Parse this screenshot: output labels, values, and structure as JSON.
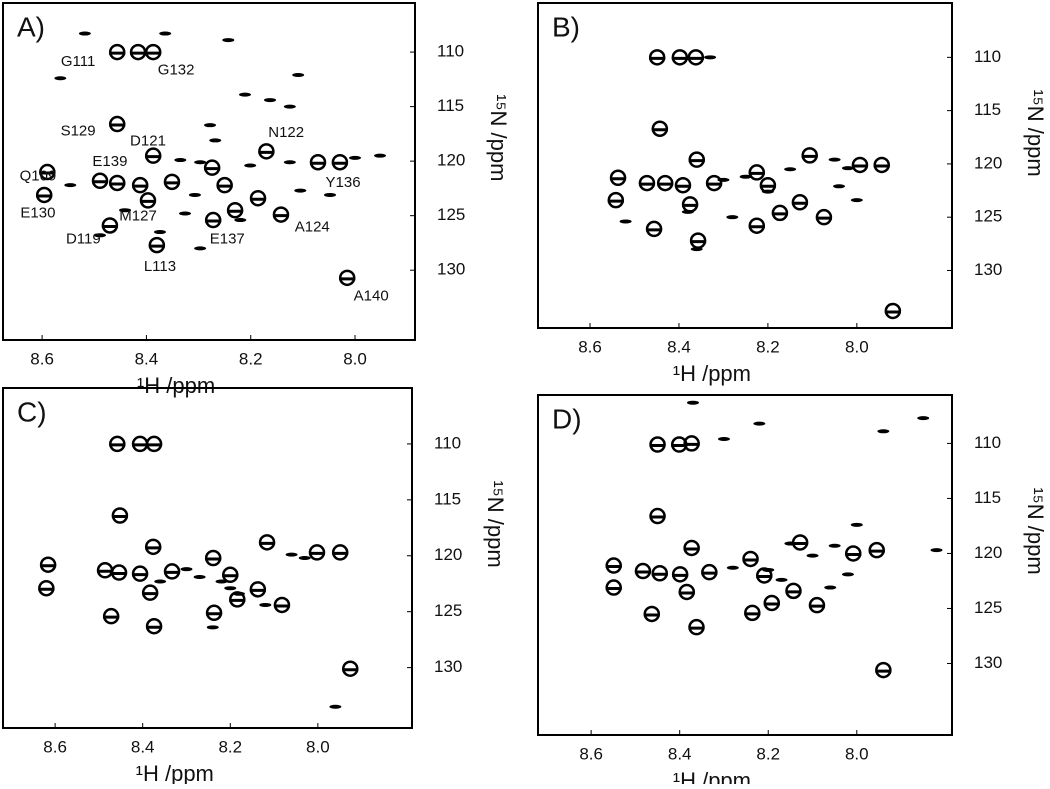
{
  "chart_data": [
    {
      "type": "scatter",
      "panel_label": "A)",
      "xlabel": "¹H /ppm",
      "ylabel": "¹⁵N /ppm",
      "xlim": [
        7.885,
        8.675
      ],
      "x_reversed": true,
      "ylim": [
        105.5,
        136.4
      ],
      "y_reversed": true,
      "xticks": [
        8.6,
        8.4,
        8.2,
        {
          "value": 8,
          "label": "8.0"
        }
      ],
      "yticks": [
        110,
        115,
        120,
        125,
        130
      ],
      "series": [
        {
          "marker": "circle",
          "color": "#000000",
          "x": [
            8.456,
            8.416,
            8.387,
            8.456,
            8.387,
            8.17,
            8.274,
            8.071,
            8.029,
            8.59,
            8.489,
            8.456,
            8.412,
            8.351,
            8.25,
            8.397,
            8.186,
            8.596,
            8.23,
            8.142,
            8.47,
            8.272,
            8.38,
            8.015
          ],
          "values": [
            110,
            110,
            110,
            116.6,
            119.5,
            119.1,
            120.6,
            120.1,
            120.1,
            121,
            121.8,
            122,
            122.2,
            121.9,
            122.2,
            123.6,
            123.4,
            123.1,
            124.5,
            124.9,
            125.9,
            125.4,
            127.7,
            130.7
          ]
        },
        {
          "marker": "peak",
          "color": "#000000",
          "x": [
            8.518,
            8.364,
            8.243,
            8.565,
            8.109,
            8.211,
            8.163,
            8.125,
            8.278,
            8.268,
            8.335,
            8.297,
            8.0,
            7.952,
            8.201,
            8.105,
            8.048,
            8.546,
            8.307,
            8.441,
            8.326,
            8.22,
            8.374,
            8.297,
            8.489,
            8.125
          ],
          "values": [
            108.3,
            108.3,
            108.9,
            112.4,
            112.1,
            113.9,
            114.4,
            115,
            116.7,
            118.1,
            119.9,
            120.1,
            119.7,
            119.5,
            120.4,
            122.7,
            123.1,
            122.2,
            123.1,
            124.5,
            124.8,
            125.4,
            126.5,
            128,
            126.8,
            120.1
          ]
        }
      ],
      "annotations": [
        {
          "text": "G111",
          "x": 8.531,
          "y": 110.9
        },
        {
          "text": "G132",
          "x": 8.343,
          "y": 111.7
        },
        {
          "text": "S129",
          "x": 8.531,
          "y": 117.3
        },
        {
          "text": "D121",
          "x": 8.397,
          "y": 118.2
        },
        {
          "text": "N122",
          "x": 8.132,
          "y": 117.4
        },
        {
          "text": "E139",
          "x": 8.47,
          "y": 120.1
        },
        {
          "text": "Q109",
          "x": 8.608,
          "y": 121.4
        },
        {
          "text": "Y136",
          "x": 8.023,
          "y": 122
        },
        {
          "text": "E130",
          "x": 8.608,
          "y": 124.8
        },
        {
          "text": "M127",
          "x": 8.416,
          "y": 125.1
        },
        {
          "text": "D119",
          "x": 8.521,
          "y": 127.2
        },
        {
          "text": "E137",
          "x": 8.245,
          "y": 127.2
        },
        {
          "text": "A124",
          "x": 8.082,
          "y": 126.1
        },
        {
          "text": "L113",
          "x": 8.374,
          "y": 129.7
        },
        {
          "text": "A140",
          "x": 7.969,
          "y": 132.4
        }
      ]
    },
    {
      "type": "scatter",
      "panel_label": "B)",
      "xlabel": "¹H /ppm",
      "ylabel": "¹⁵N /ppm",
      "xlim": [
        7.786,
        8.717
      ],
      "x_reversed": true,
      "ylim": [
        104.9,
        135.4
      ],
      "y_reversed": true,
      "xticks": [
        8.6,
        8.4,
        8.2,
        {
          "value": 8,
          "label": "8.0"
        }
      ],
      "yticks": [
        110,
        115,
        120,
        125,
        130
      ],
      "series": [
        {
          "marker": "circle",
          "color": "#000000",
          "x": [
            8.449,
            8.398,
            8.362,
            8.443,
            8.36,
            8.106,
            8.225,
            7.993,
            7.944,
            8.537,
            8.472,
            8.431,
            8.391,
            8.321,
            8.2,
            8.375,
            8.128,
            8.542,
            8.173,
            8.074,
            8.456,
            8.225,
            8.357,
            7.919
          ],
          "values": [
            110,
            110,
            110,
            116.7,
            119.6,
            119.2,
            120.8,
            120.1,
            120.1,
            121.3,
            121.8,
            121.8,
            122,
            121.8,
            122,
            123.8,
            123.6,
            123.4,
            124.6,
            125,
            126.1,
            125.8,
            127.2,
            133.8
          ]
        },
        {
          "marker": "peak",
          "color": "#000000",
          "x": [
            8.33,
            8.05,
            8.02,
            8.3,
            8.25,
            8.15,
            8.0,
            8.38,
            8.36,
            8.52,
            8.28,
            8.2,
            8.04
          ],
          "values": [
            110,
            119.6,
            120.4,
            121.5,
            121.2,
            120.5,
            123.4,
            124.5,
            128,
            125.4,
            125,
            122.6,
            122.1
          ]
        }
      ]
    },
    {
      "type": "scatter",
      "panel_label": "C)",
      "xlabel": "¹H /ppm",
      "ylabel": "¹⁵N /ppm",
      "xlim": [
        7.785,
        8.719
      ],
      "x_reversed": true,
      "ylim": [
        105,
        135.4
      ],
      "y_reversed": true,
      "xticks": [
        8.6,
        8.4,
        8.2,
        {
          "value": 8,
          "label": "8.0"
        }
      ],
      "yticks": [
        110,
        115,
        120,
        125,
        130
      ],
      "series": [
        {
          "marker": "circle",
          "color": "#000000",
          "x": [
            8.458,
            8.406,
            8.374,
            8.452,
            8.376,
            8.116,
            8.239,
            8.002,
            7.949,
            8.616,
            8.486,
            8.454,
            8.406,
            8.333,
            8.2,
            8.383,
            8.137,
            8.62,
            8.184,
            8.082,
            8.472,
            8.237,
            8.374,
            7.926
          ],
          "values": [
            110,
            110,
            110,
            116.4,
            119.2,
            118.8,
            120.2,
            119.7,
            119.7,
            120.8,
            121.3,
            121.5,
            121.6,
            121.4,
            121.7,
            123.3,
            123,
            122.9,
            123.9,
            124.4,
            125.4,
            125.1,
            126.3,
            130.1
          ]
        },
        {
          "marker": "peak",
          "color": "#000000",
          "x": [
            8.3,
            8.27,
            8.22,
            8.2,
            8.18,
            8.12,
            8.06,
            8.03,
            8.36,
            7.96,
            8.24
          ],
          "values": [
            121.2,
            121.9,
            122.3,
            122.9,
            123.4,
            124.4,
            119.9,
            120.2,
            122.3,
            133.5,
            126.4
          ]
        }
      ]
    },
    {
      "type": "scatter",
      "panel_label": "D)",
      "xlabel": "¹H /ppm",
      "ylabel": "¹⁵N /ppm",
      "xlim": [
        7.785,
        8.72
      ],
      "x_reversed": true,
      "ylim": [
        105.6,
        136.5
      ],
      "y_reversed": true,
      "xticks": [
        8.6,
        8.4,
        8.2,
        {
          "value": 8,
          "label": "8.0"
        }
      ],
      "yticks": [
        110,
        115,
        120,
        125,
        130
      ],
      "series": [
        {
          "marker": "circle",
          "color": "#000000",
          "x": [
            8.45,
            8.401,
            8.373,
            8.45,
            8.373,
            8.128,
            8.24,
            7.955,
            8.008,
            8.549,
            8.483,
            8.445,
            8.399,
            8.333,
            8.209,
            8.384,
            8.143,
            8.549,
            8.192,
            8.09,
            8.463,
            8.236,
            8.362,
            7.94
          ],
          "values": [
            110.1,
            110.1,
            110,
            116.6,
            119.5,
            119,
            120.5,
            119.7,
            120,
            121.1,
            121.6,
            121.8,
            121.9,
            121.7,
            122,
            123.5,
            123.4,
            123.1,
            124.5,
            124.7,
            125.5,
            125.4,
            126.7,
            130.6
          ]
        },
        {
          "marker": "peak",
          "color": "#000000",
          "x": [
            8.37,
            8.3,
            8.22,
            7.94,
            7.85,
            8.0,
            7.82,
            8.15,
            8.05,
            8.1,
            8.28,
            8.2,
            8.02,
            8.06,
            8.17
          ],
          "values": [
            106.3,
            109.6,
            108.2,
            108.9,
            107.7,
            117.4,
            119.7,
            119.1,
            119.3,
            120.2,
            121.3,
            121.5,
            121.9,
            123.1,
            122.4
          ]
        }
      ]
    }
  ]
}
